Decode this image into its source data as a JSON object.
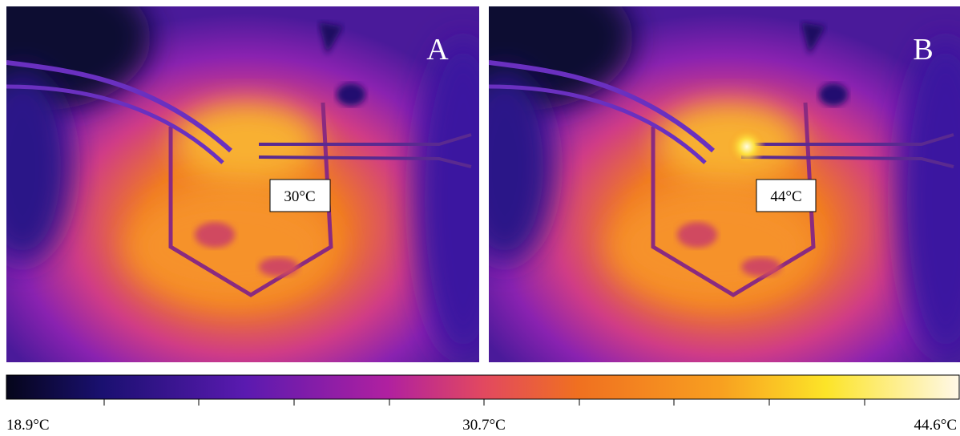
{
  "panels": [
    {
      "label": "A",
      "annotation": "30°C"
    },
    {
      "label": "B",
      "annotation": "44°C"
    }
  ],
  "colorbar": {
    "min_label": "18.9°C",
    "mid_label": "30.7°C",
    "max_label": "44.6°C"
  }
}
